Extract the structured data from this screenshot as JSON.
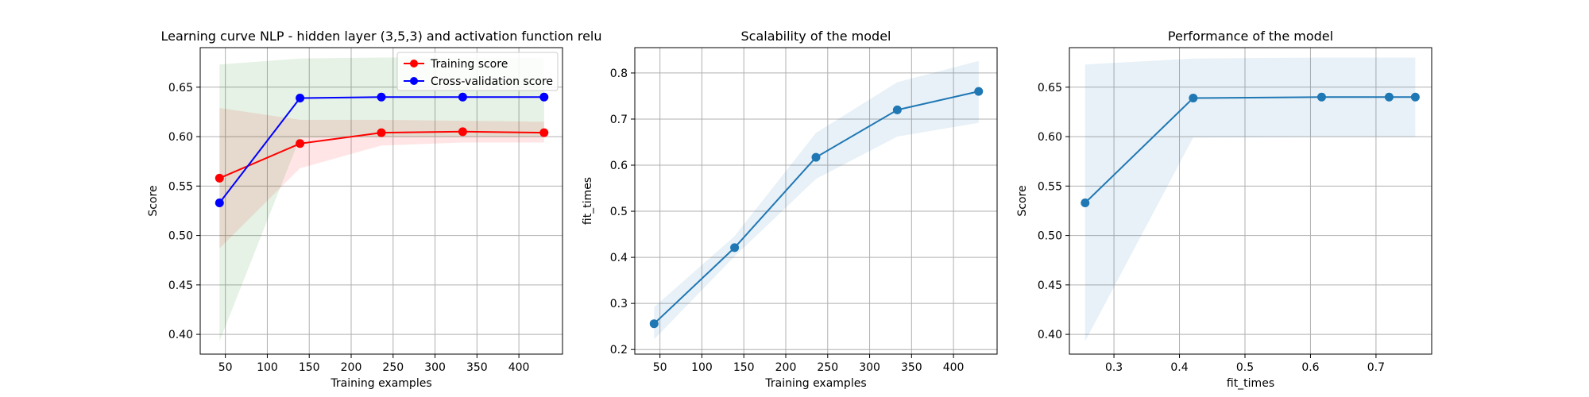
{
  "chart_data": [
    {
      "type": "line",
      "title": "Learning curve NLP - hidden layer (3,5,3) and activation function relu",
      "xlabel": "Training examples",
      "ylabel": "Score",
      "xlim": [
        20,
        452
      ],
      "ylim": [
        0.38,
        0.69
      ],
      "xticks": [
        50,
        100,
        150,
        200,
        250,
        300,
        350,
        400
      ],
      "xtick_labels": [
        "50",
        "100",
        "150",
        "200",
        "250",
        "300",
        "350",
        "400"
      ],
      "yticks": [
        0.4,
        0.45,
        0.5,
        0.55,
        0.6,
        0.65
      ],
      "ytick_labels": [
        "0.40",
        "0.45",
        "0.50",
        "0.55",
        "0.60",
        "0.65"
      ],
      "grid": true,
      "legend": "top-right",
      "x": [
        43,
        139,
        236,
        333,
        430
      ],
      "series": [
        {
          "name": "Training score",
          "color": "#ff0000",
          "values": [
            0.558,
            0.593,
            0.604,
            0.605,
            0.604
          ],
          "band_lower": [
            0.487,
            0.568,
            0.591,
            0.594,
            0.594
          ],
          "band_upper": [
            0.629,
            0.617,
            0.617,
            0.616,
            0.615
          ]
        },
        {
          "name": "Cross-validation score",
          "color": "#0000ff",
          "values": [
            0.533,
            0.639,
            0.64,
            0.64,
            0.64
          ],
          "band_lower": [
            0.393,
            0.599,
            0.6,
            0.6,
            0.6
          ],
          "band_upper": [
            0.673,
            0.679,
            0.68,
            0.68,
            0.68
          ]
        }
      ]
    },
    {
      "type": "line",
      "title": "Scalability of the model",
      "xlabel": "Training examples",
      "ylabel": "fit_times",
      "xlim": [
        20,
        452
      ],
      "ylim": [
        0.19,
        0.855
      ],
      "xticks": [
        50,
        100,
        150,
        200,
        250,
        300,
        350,
        400
      ],
      "xtick_labels": [
        "50",
        "100",
        "150",
        "200",
        "250",
        "300",
        "350",
        "400"
      ],
      "yticks": [
        0.2,
        0.3,
        0.4,
        0.5,
        0.6,
        0.7,
        0.8
      ],
      "ytick_labels": [
        "0.2",
        "0.3",
        "0.4",
        "0.5",
        "0.6",
        "0.7",
        "0.8"
      ],
      "grid": true,
      "x": [
        43,
        139,
        236,
        333,
        430
      ],
      "series": [
        {
          "color": "#1f77b4",
          "values": [
            0.256,
            0.421,
            0.617,
            0.72,
            0.76
          ],
          "band_lower": [
            0.222,
            0.402,
            0.57,
            0.662,
            0.692
          ],
          "band_upper": [
            0.292,
            0.446,
            0.67,
            0.78,
            0.826
          ]
        }
      ]
    },
    {
      "type": "line",
      "title": "Performance of the model",
      "xlabel": "fit_times",
      "ylabel": "Score",
      "xlim": [
        0.232,
        0.785
      ],
      "ylim": [
        0.38,
        0.69
      ],
      "xticks": [
        0.3,
        0.4,
        0.5,
        0.6,
        0.7
      ],
      "xtick_labels": [
        "0.3",
        "0.4",
        "0.5",
        "0.6",
        "0.7"
      ],
      "yticks": [
        0.4,
        0.45,
        0.5,
        0.55,
        0.6,
        0.65
      ],
      "ytick_labels": [
        "0.40",
        "0.45",
        "0.50",
        "0.55",
        "0.60",
        "0.65"
      ],
      "grid": true,
      "x": [
        0.256,
        0.421,
        0.617,
        0.72,
        0.76
      ],
      "series": [
        {
          "color": "#1f77b4",
          "values": [
            0.533,
            0.639,
            0.64,
            0.64,
            0.64
          ],
          "band_lower": [
            0.393,
            0.599,
            0.6,
            0.6,
            0.6
          ],
          "band_upper": [
            0.673,
            0.679,
            0.68,
            0.68,
            0.68
          ]
        }
      ]
    }
  ]
}
